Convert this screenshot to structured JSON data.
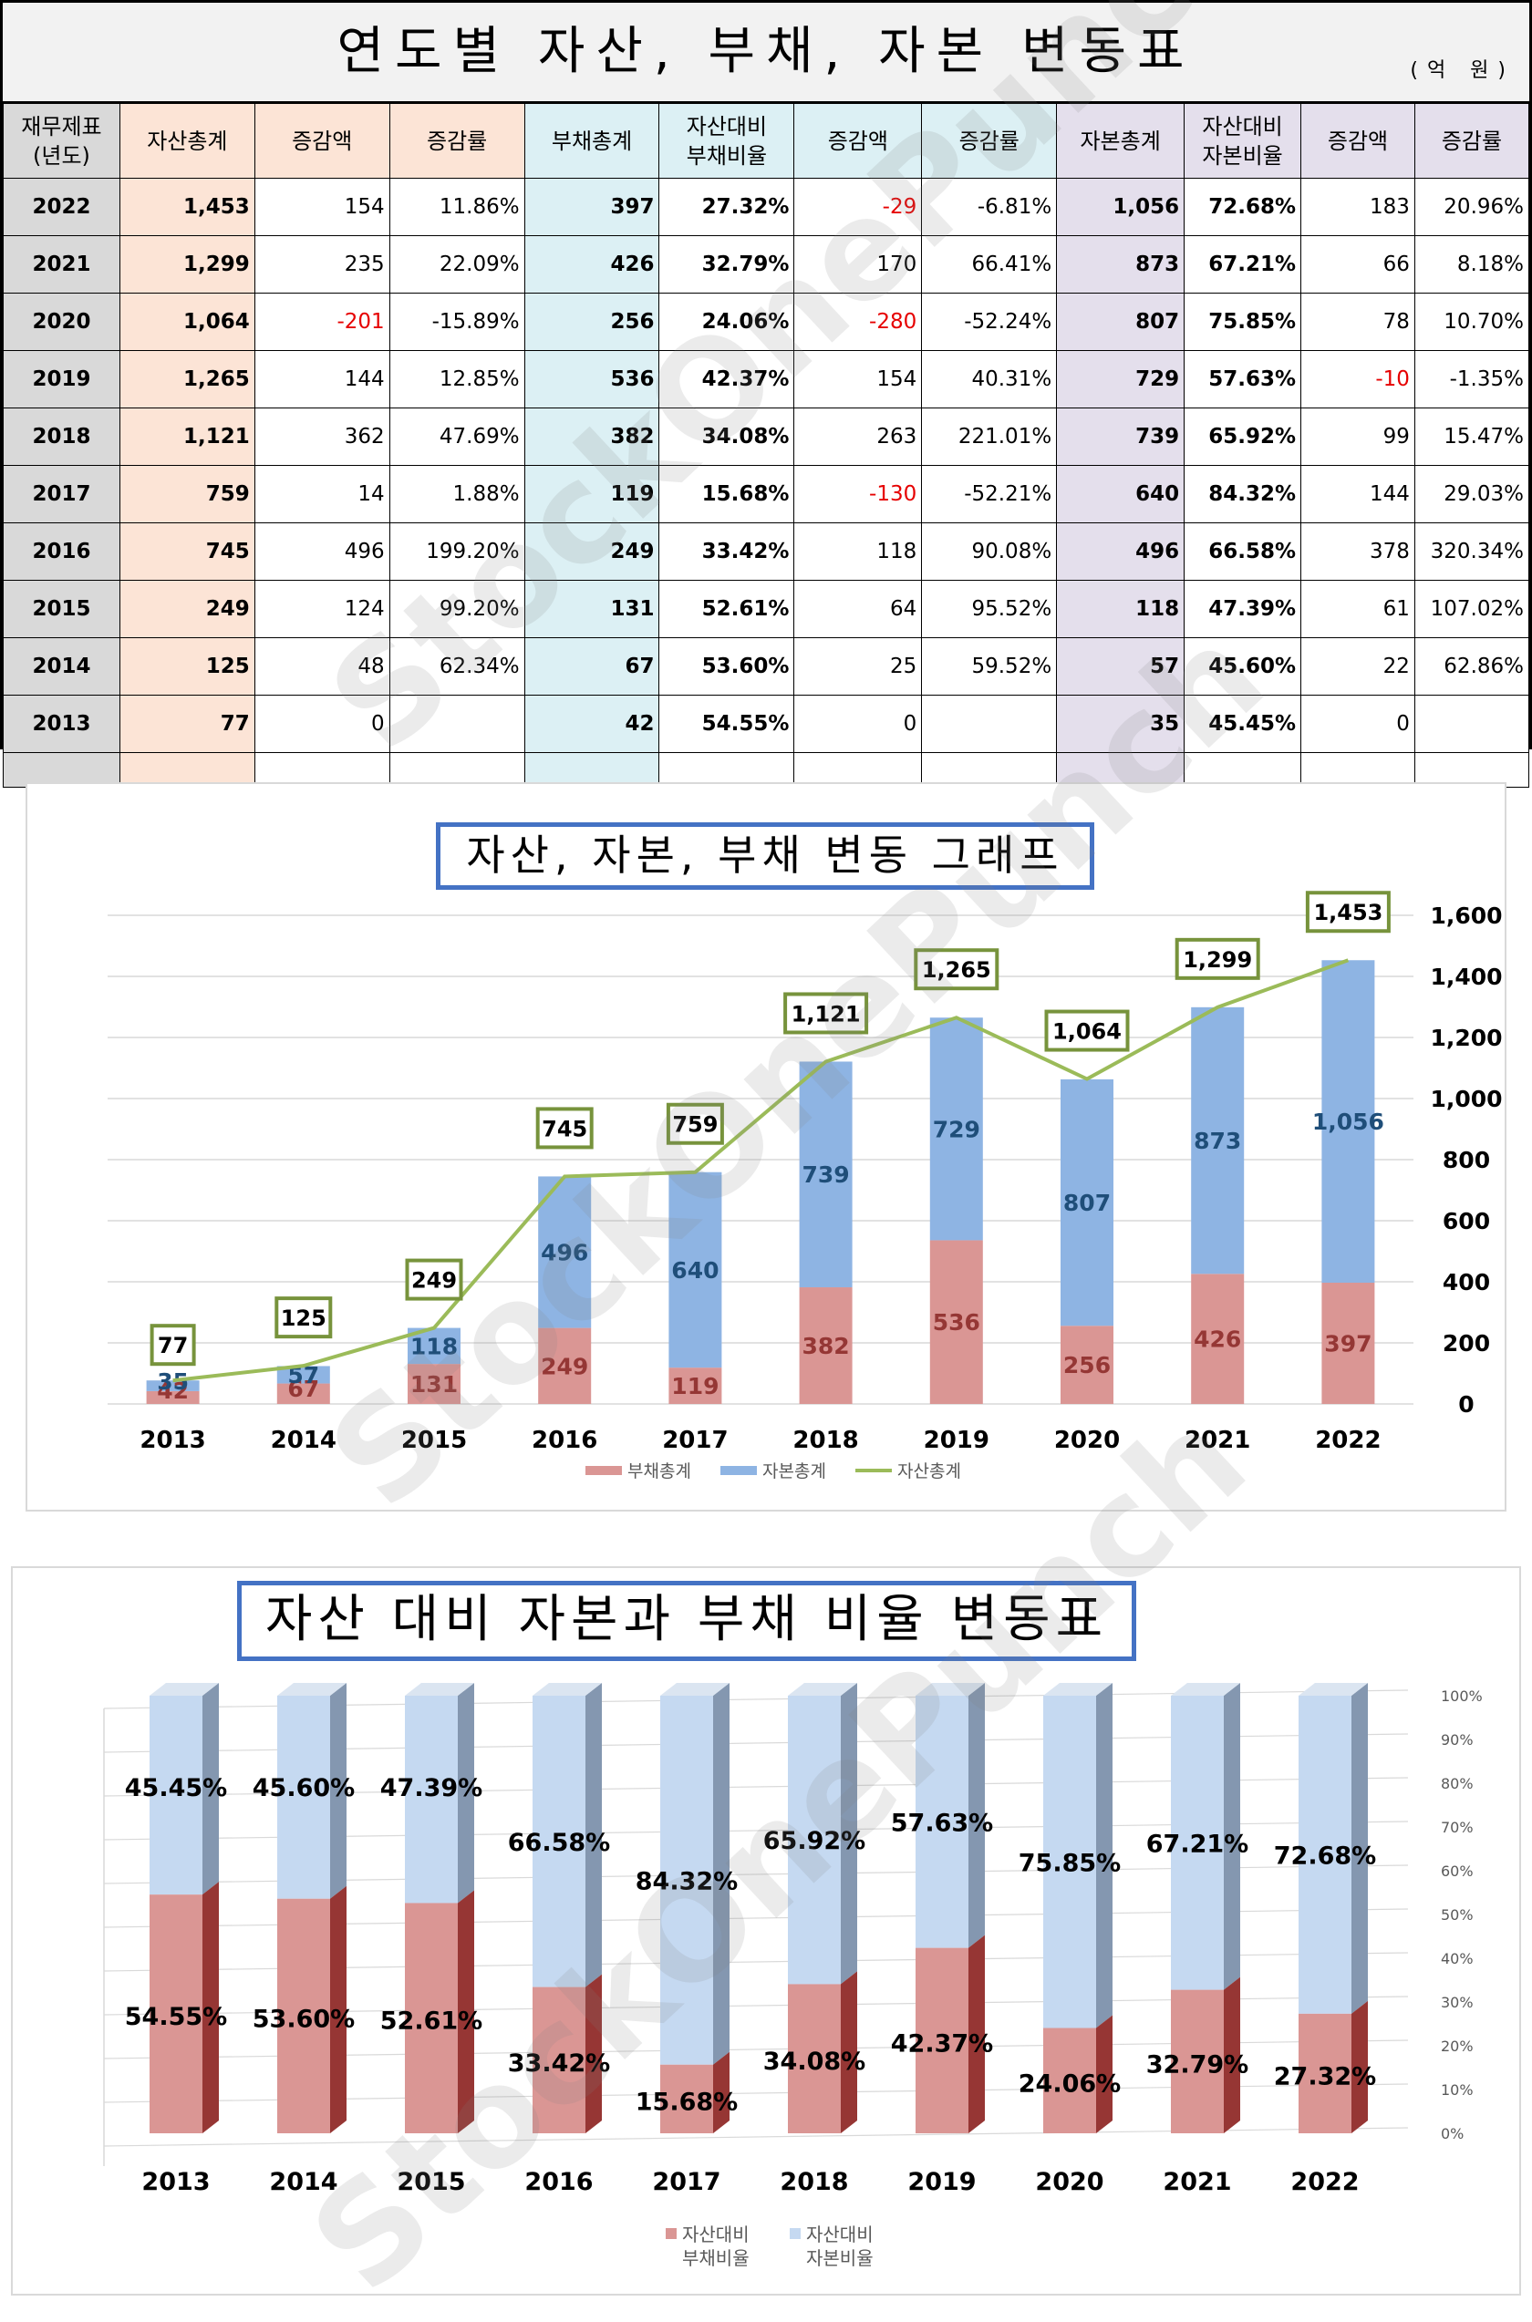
{
  "page": {
    "title": "연도별 자산, 부채, 자본 변동표",
    "unit": "(억 원)",
    "watermark": "StockOnePunch"
  },
  "table": {
    "headers": {
      "year": "재무제표\n(년도)",
      "assets_total": "자산총계",
      "assets_change": "증감액",
      "assets_rate": "증감률",
      "liab_total": "부채총계",
      "liab_ratio": "자산대비\n부채비율",
      "liab_change": "증감액",
      "liab_rate": "증감률",
      "equity_total": "자본총계",
      "equity_ratio": "자산대비\n자본비율",
      "equity_change": "증감액",
      "equity_rate": "증감률"
    },
    "rows": [
      {
        "year": "2022",
        "assets_total": "1,453",
        "assets_change": "154",
        "assets_rate": "11.86%",
        "liab_total": "397",
        "liab_ratio": "27.32%",
        "liab_change": "-29",
        "liab_rate": "-6.81%",
        "equity_total": "1,056",
        "equity_ratio": "72.68%",
        "equity_change": "183",
        "equity_rate": "20.96%"
      },
      {
        "year": "2021",
        "assets_total": "1,299",
        "assets_change": "235",
        "assets_rate": "22.09%",
        "liab_total": "426",
        "liab_ratio": "32.79%",
        "liab_change": "170",
        "liab_rate": "66.41%",
        "equity_total": "873",
        "equity_ratio": "67.21%",
        "equity_change": "66",
        "equity_rate": "8.18%"
      },
      {
        "year": "2020",
        "assets_total": "1,064",
        "assets_change": "-201",
        "assets_rate": "-15.89%",
        "liab_total": "256",
        "liab_ratio": "24.06%",
        "liab_change": "-280",
        "liab_rate": "-52.24%",
        "equity_total": "807",
        "equity_ratio": "75.85%",
        "equity_change": "78",
        "equity_rate": "10.70%"
      },
      {
        "year": "2019",
        "assets_total": "1,265",
        "assets_change": "144",
        "assets_rate": "12.85%",
        "liab_total": "536",
        "liab_ratio": "42.37%",
        "liab_change": "154",
        "liab_rate": "40.31%",
        "equity_total": "729",
        "equity_ratio": "57.63%",
        "equity_change": "-10",
        "equity_rate": "-1.35%"
      },
      {
        "year": "2018",
        "assets_total": "1,121",
        "assets_change": "362",
        "assets_rate": "47.69%",
        "liab_total": "382",
        "liab_ratio": "34.08%",
        "liab_change": "263",
        "liab_rate": "221.01%",
        "equity_total": "739",
        "equity_ratio": "65.92%",
        "equity_change": "99",
        "equity_rate": "15.47%"
      },
      {
        "year": "2017",
        "assets_total": "759",
        "assets_change": "14",
        "assets_rate": "1.88%",
        "liab_total": "119",
        "liab_ratio": "15.68%",
        "liab_change": "-130",
        "liab_rate": "-52.21%",
        "equity_total": "640",
        "equity_ratio": "84.32%",
        "equity_change": "144",
        "equity_rate": "29.03%"
      },
      {
        "year": "2016",
        "assets_total": "745",
        "assets_change": "496",
        "assets_rate": "199.20%",
        "liab_total": "249",
        "liab_ratio": "33.42%",
        "liab_change": "118",
        "liab_rate": "90.08%",
        "equity_total": "496",
        "equity_ratio": "66.58%",
        "equity_change": "378",
        "equity_rate": "320.34%"
      },
      {
        "year": "2015",
        "assets_total": "249",
        "assets_change": "124",
        "assets_rate": "99.20%",
        "liab_total": "131",
        "liab_ratio": "52.61%",
        "liab_change": "64",
        "liab_rate": "95.52%",
        "equity_total": "118",
        "equity_ratio": "47.39%",
        "equity_change": "61",
        "equity_rate": "107.02%"
      },
      {
        "year": "2014",
        "assets_total": "125",
        "assets_change": "48",
        "assets_rate": "62.34%",
        "liab_total": "67",
        "liab_ratio": "53.60%",
        "liab_change": "25",
        "liab_rate": "59.52%",
        "equity_total": "57",
        "equity_ratio": "45.60%",
        "equity_change": "22",
        "equity_rate": "62.86%"
      },
      {
        "year": "2013",
        "assets_total": "77",
        "assets_change": "0",
        "assets_rate": "",
        "liab_total": "42",
        "liab_ratio": "54.55%",
        "liab_change": "0",
        "liab_rate": "",
        "equity_total": "35",
        "equity_ratio": "45.45%",
        "equity_change": "0",
        "equity_rate": ""
      }
    ],
    "colors": {
      "assets": "#fce4d6",
      "liab": "#dcf0f4",
      "equity": "#e4dfec",
      "year": "#d9d9d9",
      "negative": "#e60000"
    }
  },
  "chart_data": [
    {
      "type": "bar",
      "stacked": true,
      "title": "자산, 자본, 부채 변동 그래프",
      "categories": [
        "2013",
        "2014",
        "2015",
        "2016",
        "2017",
        "2018",
        "2019",
        "2020",
        "2021",
        "2022"
      ],
      "series": [
        {
          "name": "부채총계",
          "kind": "bar",
          "color": "#da9694",
          "values": [
            42,
            67,
            131,
            249,
            119,
            382,
            536,
            256,
            426,
            397
          ]
        },
        {
          "name": "자본총계",
          "kind": "bar",
          "color": "#8eb4e3",
          "values": [
            35,
            57,
            118,
            496,
            640,
            739,
            729,
            807,
            873,
            1056
          ]
        },
        {
          "name": "자산총계",
          "kind": "line",
          "color": "#9bbb59",
          "values": [
            77,
            125,
            249,
            745,
            759,
            1121,
            1265,
            1064,
            1299,
            1453
          ]
        }
      ],
      "y_axis": {
        "position": "right",
        "min": 0,
        "max": 1600,
        "step": 200,
        "ticks": [
          "0",
          "200",
          "400",
          "600",
          "800",
          "1,000",
          "1,200",
          "1,400",
          "1,600"
        ]
      },
      "grid": true,
      "legend": "bottom",
      "data_labels": {
        "liab": [
          "42",
          "67",
          "131",
          "249",
          "119",
          "382",
          "536",
          "256",
          "426",
          "397"
        ],
        "equity": [
          "35",
          "57",
          "118",
          "496",
          "640",
          "739",
          "729",
          "807",
          "873",
          "1,056"
        ],
        "assets": [
          "77",
          "125",
          "249",
          "745",
          "759",
          "1,121",
          "1,265",
          "1,064",
          "1,299",
          "1,453"
        ]
      }
    },
    {
      "type": "bar",
      "stacked": true,
      "percent": true,
      "style": "3d",
      "title": "자산 대비 자본과 부채 비율 변동표",
      "categories": [
        "2013",
        "2014",
        "2015",
        "2016",
        "2017",
        "2018",
        "2019",
        "2020",
        "2021",
        "2022"
      ],
      "series": [
        {
          "name": "자산대비 부채비율",
          "color": "#da9694",
          "values": [
            54.55,
            53.6,
            52.61,
            33.42,
            15.68,
            34.08,
            42.37,
            24.06,
            32.79,
            27.32
          ]
        },
        {
          "name": "자산대비 자본비율",
          "color": "#c5d9f1",
          "values": [
            45.45,
            45.6,
            47.39,
            66.58,
            84.32,
            65.92,
            57.63,
            75.85,
            67.21,
            72.68
          ]
        }
      ],
      "y_axis": {
        "position": "right",
        "min": 0,
        "max": 100,
        "step": 10,
        "ticks": [
          "0%",
          "10%",
          "20%",
          "30%",
          "40%",
          "50%",
          "60%",
          "70%",
          "80%",
          "90%",
          "100%"
        ]
      },
      "grid": true,
      "legend": "bottom",
      "legend_labels": [
        [
          "자산대비",
          "부채비율"
        ],
        [
          "자산대비",
          "자본비율"
        ]
      ],
      "data_labels": {
        "liab": [
          "54.55%",
          "53.60%",
          "52.61%",
          "33.42%",
          "15.68%",
          "34.08%",
          "42.37%",
          "24.06%",
          "32.79%",
          "27.32%"
        ],
        "equity": [
          "45.45%",
          "45.60%",
          "47.39%",
          "66.58%",
          "84.32%",
          "65.92%",
          "57.63%",
          "75.85%",
          "67.21%",
          "72.68%"
        ]
      }
    }
  ]
}
